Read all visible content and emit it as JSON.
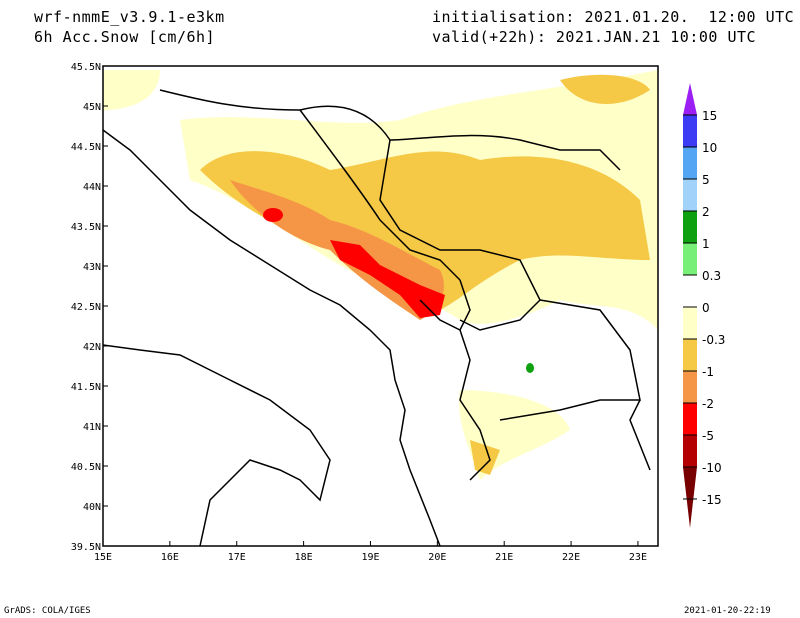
{
  "header": {
    "model": "wrf-nmmE_v3.9.1-e3km",
    "field": "6h Acc.Snow [cm/6h]",
    "init": "initialisation: 2021.01.20.  12:00 UTC",
    "valid": "valid(+22h): 2021.JAN.21 10:00 UTC"
  },
  "footer": {
    "left": "GrADS: COLA/IGES",
    "right": "2021-01-20-22:19"
  },
  "map": {
    "lon_labels": [
      "15E",
      "16E",
      "17E",
      "18E",
      "19E",
      "20E",
      "21E",
      "22E",
      "23E"
    ],
    "lat_labels": [
      "45.5N",
      "45N",
      "44.5N",
      "44N",
      "43.5N",
      "43N",
      "42.5N",
      "42N",
      "41.5N",
      "41N",
      "40.5N",
      "40N",
      "39.5N"
    ],
    "extent": {
      "lon": [
        15,
        23.3
      ],
      "lat": [
        39.5,
        45.5
      ]
    }
  },
  "colorbar": {
    "labels": [
      "15",
      "10",
      "5",
      "2",
      "1",
      "0.3",
      "0",
      "-0.3",
      "-1",
      "-2",
      "-5",
      "-10",
      "-15"
    ],
    "colors": [
      "#9b1ef5",
      "#3c3cf5",
      "#55a5f5",
      "#a0d2fa",
      "#0fa00f",
      "#78f078",
      "#ffffff",
      "#ffffc8",
      "#f5c846",
      "#f59646",
      "#ff0000",
      "#b40000",
      "#780000"
    ]
  }
}
